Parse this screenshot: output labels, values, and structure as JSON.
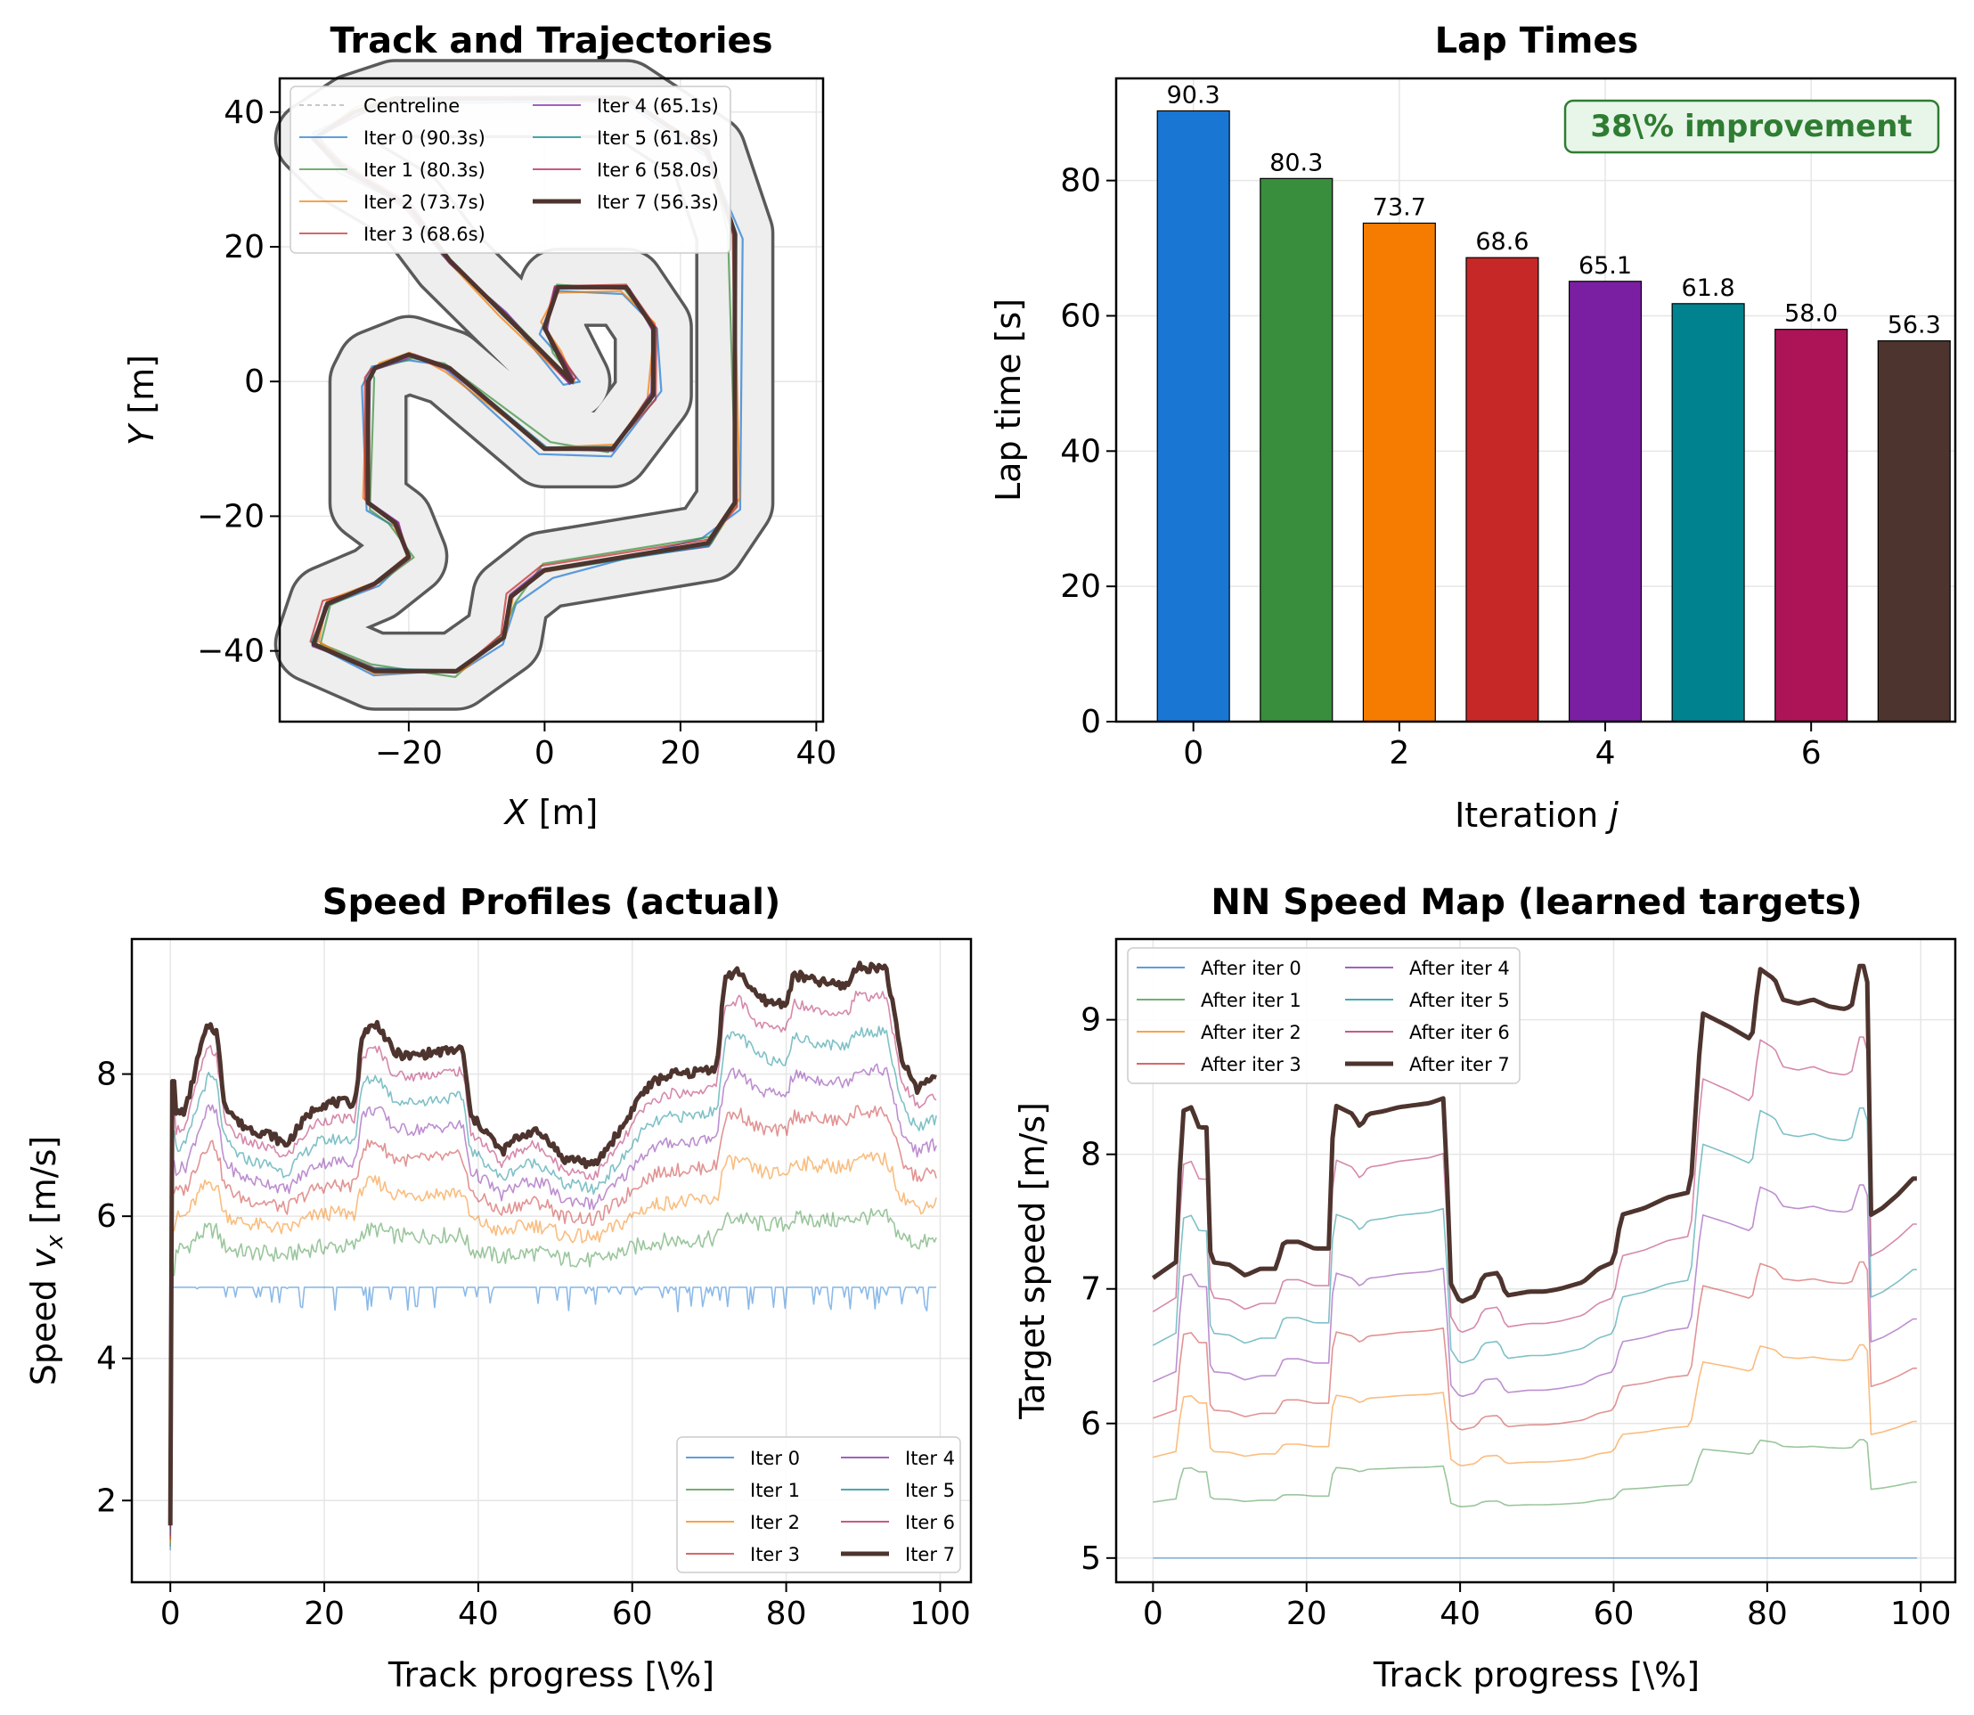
{
  "chart_data": [
    {
      "type": "line",
      "title": "Track and Trajectories",
      "xlabel_var": "X",
      "xlabel_unit": " [m]",
      "ylabel_var": "Y",
      "ylabel_unit": " [m]",
      "xlim": [
        -39,
        41
      ],
      "ylim": [
        -50.5,
        45
      ],
      "xticks": [
        -20,
        0,
        20,
        40
      ],
      "yticks": [
        -40,
        -20,
        0,
        20,
        40
      ],
      "track_width_m": 11,
      "centerline": [
        [
          4,
          0
        ],
        [
          -6,
          10
        ],
        [
          -14,
          18
        ],
        [
          -20,
          26
        ],
        [
          -30,
          32
        ],
        [
          -34,
          36
        ],
        [
          -28,
          40
        ],
        [
          -22,
          42
        ],
        [
          12,
          42
        ],
        [
          24,
          34
        ],
        [
          28,
          22
        ],
        [
          28,
          -18
        ],
        [
          24,
          -24
        ],
        [
          0,
          -28
        ],
        [
          -5,
          -32
        ],
        [
          -6,
          -38
        ],
        [
          -13,
          -43
        ],
        [
          -25,
          -43
        ],
        [
          -34,
          -39
        ],
        [
          -32,
          -33
        ],
        [
          -25,
          -30
        ],
        [
          -20,
          -26
        ],
        [
          -22,
          -21
        ],
        [
          -26,
          -18
        ],
        [
          -26,
          0
        ],
        [
          -25,
          2
        ],
        [
          -20,
          4
        ],
        [
          -14,
          2
        ],
        [
          0,
          -10
        ],
        [
          10,
          -10
        ],
        [
          16,
          -2
        ],
        [
          16,
          8
        ],
        [
          12,
          14
        ],
        [
          2,
          14
        ],
        [
          0,
          8
        ],
        [
          2,
          4
        ],
        [
          4,
          0
        ]
      ],
      "legend": [
        {
          "label": "Centreline",
          "color": "#999999",
          "style": "dashed"
        },
        {
          "label": "Iter 0 (90.3s)",
          "color": "#1976d2"
        },
        {
          "label": "Iter 1 (80.3s)",
          "color": "#388e3c"
        },
        {
          "label": "Iter 2 (73.7s)",
          "color": "#f57c00"
        },
        {
          "label": "Iter 3 (68.6s)",
          "color": "#c62828"
        },
        {
          "label": "Iter 4 (65.1s)",
          "color": "#7b1fa2"
        },
        {
          "label": "Iter 5 (61.8s)",
          "color": "#00838f"
        },
        {
          "label": "Iter 6 (58.0s)",
          "color": "#ad1457"
        },
        {
          "label": "Iter 7 (56.3s)",
          "color": "#4e342e",
          "bold": true
        }
      ]
    },
    {
      "type": "bar",
      "title": "Lap Times",
      "xlabel": "Iteration ",
      "xlabel_var": "j",
      "ylabel": "Lap time [s]",
      "categories": [
        0,
        1,
        2,
        3,
        4,
        5,
        6,
        7
      ],
      "values": [
        90.3,
        80.3,
        73.7,
        68.6,
        65.1,
        61.8,
        58.0,
        56.3
      ],
      "labels": [
        "90.3",
        "80.3",
        "73.7",
        "68.6",
        "65.1",
        "61.8",
        "58.0",
        "56.3"
      ],
      "colors": [
        "#1976d2",
        "#388e3c",
        "#f57c00",
        "#c62828",
        "#7b1fa2",
        "#00838f",
        "#ad1457",
        "#4e342e"
      ],
      "xlim": [
        -0.75,
        7.4
      ],
      "ylim": [
        0,
        95.1
      ],
      "xticks": [
        0,
        2,
        4,
        6
      ],
      "yticks": [
        0,
        20,
        40,
        60,
        80
      ],
      "annotation": "38\\% improvement"
    },
    {
      "type": "line",
      "title": "Speed Profiles (actual)",
      "xlabel": "Track progress [\\%]",
      "ylabel_pre": "Speed ",
      "ylabel_var": "v",
      "ylabel_sub": "x",
      "ylabel_post": " [m/s]",
      "xlim": [
        -5,
        104
      ],
      "ylim": [
        0.85,
        9.9
      ],
      "xticks": [
        0,
        20,
        40,
        60,
        80,
        100
      ],
      "yticks": [
        2,
        4,
        6,
        8
      ],
      "base_profile": [
        [
          0,
          7.4
        ],
        [
          2,
          7.5
        ],
        [
          4,
          8.4
        ],
        [
          5,
          8.7
        ],
        [
          6,
          8.6
        ],
        [
          7,
          7.6
        ],
        [
          9,
          7.3
        ],
        [
          11,
          7.2
        ],
        [
          13,
          7.15
        ],
        [
          15,
          7.0
        ],
        [
          17,
          7.3
        ],
        [
          19,
          7.55
        ],
        [
          21,
          7.6
        ],
        [
          24,
          7.6
        ],
        [
          25,
          8.6
        ],
        [
          27,
          8.7
        ],
        [
          29,
          8.3
        ],
        [
          31,
          8.25
        ],
        [
          34,
          8.3
        ],
        [
          38,
          8.35
        ],
        [
          39,
          7.4
        ],
        [
          41,
          7.2
        ],
        [
          43,
          6.9
        ],
        [
          45,
          7.1
        ],
        [
          47,
          7.2
        ],
        [
          49,
          7.1
        ],
        [
          51,
          6.8
        ],
        [
          53,
          6.8
        ],
        [
          55,
          6.7
        ],
        [
          57,
          7.0
        ],
        [
          59,
          7.3
        ],
        [
          61,
          7.7
        ],
        [
          63,
          7.9
        ],
        [
          65,
          8.0
        ],
        [
          67,
          8.0
        ],
        [
          69,
          8.05
        ],
        [
          71,
          8.1
        ],
        [
          72,
          9.35
        ],
        [
          74,
          9.45
        ],
        [
          76,
          9.1
        ],
        [
          78,
          9.0
        ],
        [
          80,
          9.0
        ],
        [
          81,
          9.4
        ],
        [
          84,
          9.3
        ],
        [
          87,
          9.25
        ],
        [
          88,
          9.25
        ],
        [
          89,
          9.5
        ],
        [
          93,
          9.5
        ],
        [
          95,
          8.2
        ],
        [
          97,
          7.8
        ],
        [
          99,
          7.95
        ]
      ],
      "series": [
        {
          "name": "Iter 0",
          "color": "#1976d2",
          "flat": 5.0,
          "scale": 0
        },
        {
          "name": "Iter 1",
          "color": "#388e3c",
          "scale": 0.22
        },
        {
          "name": "Iter 2",
          "color": "#f57c00",
          "scale": 0.4
        },
        {
          "name": "Iter 3",
          "color": "#c62828",
          "scale": 0.55
        },
        {
          "name": "Iter 4",
          "color": "#7b1fa2",
          "scale": 0.68
        },
        {
          "name": "Iter 5",
          "color": "#00838f",
          "scale": 0.8
        },
        {
          "name": "Iter 6",
          "color": "#ad1457",
          "scale": 0.91
        },
        {
          "name": "Iter 7",
          "color": "#4e342e",
          "scale": 1.0,
          "bold": true
        }
      ]
    },
    {
      "type": "line",
      "title": "NN Speed Map (learned targets)",
      "xlabel": "Track progress [\\%]",
      "ylabel": "Target speed [m/s]",
      "xlim": [
        -4.8,
        104.5
      ],
      "ylim": [
        4.82,
        9.6
      ],
      "xticks": [
        0,
        20,
        40,
        60,
        80,
        100
      ],
      "yticks": [
        5,
        6,
        7,
        8,
        9
      ],
      "base_profile": [
        [
          0,
          7.08
        ],
        [
          3,
          7.2
        ],
        [
          3.8,
          8.32
        ],
        [
          5,
          8.35
        ],
        [
          6,
          8.2
        ],
        [
          7,
          8.2
        ],
        [
          7.5,
          7.2
        ],
        [
          10,
          7.18
        ],
        [
          12,
          7.1
        ],
        [
          14,
          7.15
        ],
        [
          16,
          7.15
        ],
        [
          17,
          7.35
        ],
        [
          19,
          7.35
        ],
        [
          21,
          7.3
        ],
        [
          23,
          7.3
        ],
        [
          23.5,
          8.37
        ],
        [
          26,
          8.3
        ],
        [
          27,
          8.2
        ],
        [
          28,
          8.3
        ],
        [
          30,
          8.32
        ],
        [
          32,
          8.35
        ],
        [
          36,
          8.38
        ],
        [
          38,
          8.42
        ],
        [
          38.7,
          7.05
        ],
        [
          40,
          6.9
        ],
        [
          42,
          6.95
        ],
        [
          43,
          7.1
        ],
        [
          45,
          7.12
        ],
        [
          46,
          6.95
        ],
        [
          49,
          6.98
        ],
        [
          51,
          6.98
        ],
        [
          53,
          7.0
        ],
        [
          56,
          7.05
        ],
        [
          58,
          7.15
        ],
        [
          60,
          7.2
        ],
        [
          61,
          7.55
        ],
        [
          64,
          7.6
        ],
        [
          67,
          7.68
        ],
        [
          70,
          7.72
        ],
        [
          71.5,
          9.05
        ],
        [
          75,
          8.95
        ],
        [
          78,
          8.85
        ],
        [
          79,
          9.38
        ],
        [
          81,
          9.3
        ],
        [
          82,
          9.15
        ],
        [
          84,
          9.12
        ],
        [
          86,
          9.15
        ],
        [
          88,
          9.1
        ],
        [
          90,
          9.08
        ],
        [
          91,
          9.1
        ],
        [
          92,
          9.4
        ],
        [
          93,
          9.4
        ],
        [
          93.5,
          7.55
        ],
        [
          95,
          7.6
        ],
        [
          97,
          7.7
        ],
        [
          99,
          7.82
        ]
      ],
      "series": [
        {
          "name": "After iter 0",
          "color": "#1976d2",
          "flat": 5.0,
          "scale": 0
        },
        {
          "name": "After iter 1",
          "color": "#388e3c",
          "scale": 0.2
        },
        {
          "name": "After iter 2",
          "color": "#f57c00",
          "scale": 0.36
        },
        {
          "name": "After iter 3",
          "color": "#c62828",
          "scale": 0.5
        },
        {
          "name": "After iter 4",
          "color": "#7b1fa2",
          "scale": 0.63
        },
        {
          "name": "After iter 5",
          "color": "#00838f",
          "scale": 0.76
        },
        {
          "name": "After iter 6",
          "color": "#ad1457",
          "scale": 0.88
        },
        {
          "name": "After iter 7",
          "color": "#4e342e",
          "scale": 1.0,
          "bold": true
        }
      ]
    }
  ]
}
